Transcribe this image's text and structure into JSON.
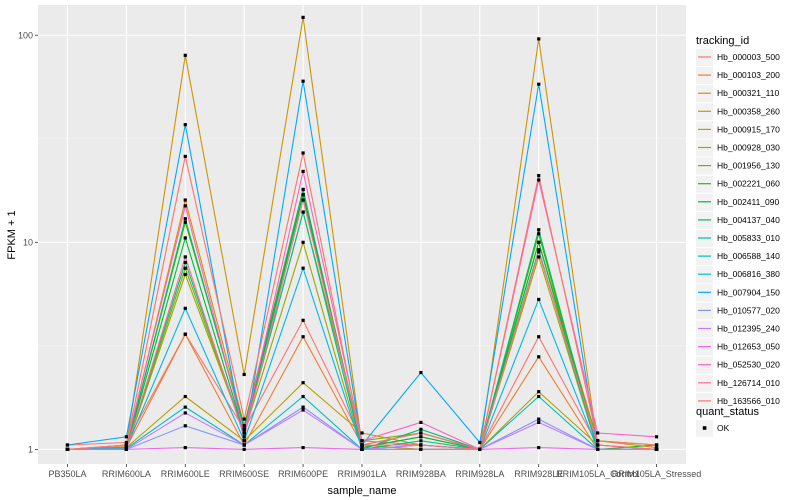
{
  "chart_data": {
    "type": "line",
    "xlabel": "sample_name",
    "ylabel": "FPKM + 1",
    "y_scale": "log10",
    "ylim": [
      0.85,
      140
    ],
    "y_ticks": [
      {
        "value": 1,
        "label": "1"
      },
      {
        "value": 10,
        "label": "10"
      },
      {
        "value": 100,
        "label": "100"
      }
    ],
    "grid": true,
    "legend_position": "right",
    "categories": [
      "PB350LA",
      "RRIM600LA",
      "RRIM600LE",
      "RRIM600SE",
      "RRIM600PE",
      "RRIM901LA",
      "RRIM928BA",
      "RRIM928LA",
      "RRIM928LE",
      "RRIM105LA_Control",
      "RRIM105LA_Stressed"
    ],
    "legend_title": "tracking_id",
    "series": [
      {
        "name": "Hb_000003_500",
        "color": "#F8766D",
        "values": [
          1.05,
          1.08,
          3.6,
          1.25,
          4.2,
          1.1,
          1.05,
          1.0,
          3.5,
          1.05,
          1.0
        ]
      },
      {
        "name": "Hb_000103_200",
        "color": "#EE7E32",
        "values": [
          1.0,
          1.02,
          3.6,
          1.05,
          3.5,
          1.05,
          1.0,
          1.0,
          2.8,
          1.0,
          1.0
        ]
      },
      {
        "name": "Hb_000321_110",
        "color": "#E08B00",
        "values": [
          1.0,
          1.03,
          16.0,
          1.3,
          18.0,
          1.02,
          1.15,
          1.0,
          10.0,
          1.1,
          1.02
        ]
      },
      {
        "name": "Hb_000358_260",
        "color": "#CF9400",
        "values": [
          1.0,
          1.05,
          80.0,
          2.3,
          122.0,
          1.05,
          1.0,
          1.0,
          96.0,
          1.05,
          1.0
        ]
      },
      {
        "name": "Hb_000915_170",
        "color": "#B79F00",
        "values": [
          1.0,
          1.02,
          1.8,
          1.1,
          2.1,
          1.2,
          1.05,
          1.0,
          1.9,
          1.05,
          1.0
        ]
      },
      {
        "name": "Hb_000928_030",
        "color": "#9CA700",
        "values": [
          1.0,
          1.01,
          7.0,
          1.2,
          10.0,
          1.0,
          1.0,
          1.0,
          8.5,
          1.0,
          1.0
        ]
      },
      {
        "name": "Hb_001956_130",
        "color": "#7CAE00",
        "values": [
          1.0,
          1.01,
          7.5,
          1.2,
          14.0,
          1.1,
          1.2,
          1.0,
          9.0,
          1.1,
          1.05
        ]
      },
      {
        "name": "Hb_002221_060",
        "color": "#39B600",
        "values": [
          1.0,
          1.02,
          12.5,
          1.3,
          17.0,
          1.05,
          1.2,
          1.0,
          11.0,
          1.0,
          1.05
        ]
      },
      {
        "name": "Hb_002411_090",
        "color": "#00BA38",
        "values": [
          1.0,
          1.01,
          10.5,
          1.2,
          17.0,
          1.02,
          1.15,
          1.0,
          10.0,
          1.0,
          1.0
        ]
      },
      {
        "name": "Hb_004137_040",
        "color": "#00BE67",
        "values": [
          1.0,
          1.01,
          13.0,
          1.25,
          18.0,
          1.0,
          1.25,
          1.0,
          11.5,
          1.0,
          1.0
        ]
      },
      {
        "name": "Hb_005833_010",
        "color": "#00C094",
        "values": [
          1.0,
          1.01,
          8.0,
          1.2,
          14.0,
          1.0,
          1.1,
          1.0,
          9.2,
          1.0,
          1.0
        ]
      },
      {
        "name": "Hb_006588_140",
        "color": "#00BFC4",
        "values": [
          1.0,
          1.01,
          1.6,
          1.05,
          1.8,
          1.0,
          1.0,
          1.0,
          1.8,
          1.0,
          1.0
        ]
      },
      {
        "name": "Hb_006816_380",
        "color": "#00B8E7",
        "values": [
          1.0,
          1.02,
          4.8,
          1.1,
          7.5,
          1.0,
          1.05,
          1.0,
          5.3,
          1.0,
          1.0
        ]
      },
      {
        "name": "Hb_007904_150",
        "color": "#00A9FF",
        "values": [
          1.05,
          1.15,
          37.0,
          1.1,
          60.0,
          1.05,
          2.35,
          1.08,
          58.0,
          1.0,
          1.0
        ]
      },
      {
        "name": "Hb_010577_020",
        "color": "#8494FF",
        "values": [
          1.0,
          1.0,
          1.3,
          1.05,
          1.6,
          1.0,
          1.0,
          1.0,
          1.4,
          1.0,
          1.0
        ]
      },
      {
        "name": "Hb_012395_240",
        "color": "#C77CFF",
        "values": [
          1.0,
          1.0,
          1.5,
          1.05,
          1.55,
          1.0,
          1.05,
          1.0,
          1.35,
          1.0,
          1.0
        ]
      },
      {
        "name": "Hb_012653_050",
        "color": "#ED68ED",
        "values": [
          1.0,
          1.0,
          1.02,
          1.0,
          1.02,
          1.0,
          1.0,
          1.0,
          1.02,
          1.0,
          1.0
        ]
      },
      {
        "name": "Hb_052530_020",
        "color": "#FF61C3",
        "values": [
          1.0,
          1.05,
          15.0,
          1.2,
          22.0,
          1.1,
          1.35,
          1.0,
          20.0,
          1.2,
          1.15
        ]
      },
      {
        "name": "Hb_126714_010",
        "color": "#FF6C91",
        "values": [
          1.0,
          1.0,
          8.5,
          1.15,
          16.0,
          1.05,
          1.2,
          1.0,
          9.0,
          1.05,
          1.0
        ]
      },
      {
        "name": "Hb_163566_010",
        "color": "#F8766D",
        "values": [
          1.0,
          1.05,
          26.0,
          1.4,
          27.0,
          1.05,
          1.05,
          1.0,
          21.0,
          1.1,
          1.05
        ]
      }
    ],
    "shape_legend": {
      "title": "quant_status",
      "entries": [
        "OK"
      ]
    }
  }
}
